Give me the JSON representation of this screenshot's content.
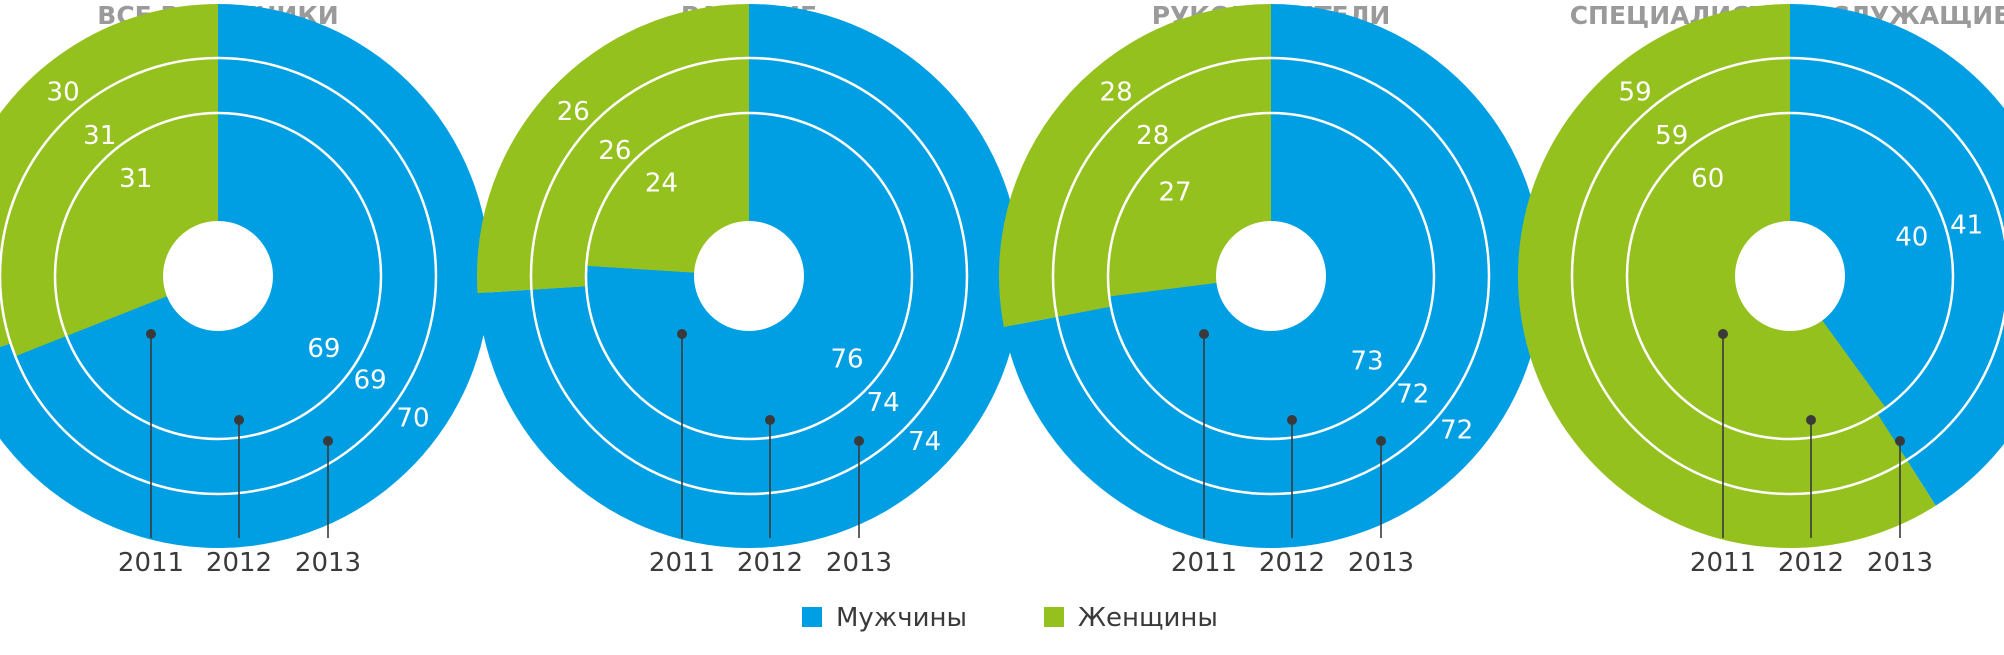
{
  "colors": {
    "men": "#009fe3",
    "women": "#95c11f",
    "ring_line": "#ffffff",
    "leader": "#3a3a3a"
  },
  "legend": [
    {
      "key": "men",
      "label": "Мужчины"
    },
    {
      "key": "women",
      "label": "Женщины"
    }
  ],
  "years": [
    "2011",
    "2012",
    "2013"
  ],
  "chart_data": [
    {
      "type": "pie",
      "title": "ВСЕ РАБОТНИКИ",
      "series": [
        {
          "name": "Мужчины",
          "values": [
            69,
            69,
            70
          ]
        },
        {
          "name": "Женщины",
          "values": [
            31,
            31,
            30
          ]
        }
      ],
      "categories": [
        "2011",
        "2012",
        "2013"
      ]
    },
    {
      "type": "pie",
      "title": "РАБОЧИЕ",
      "series": [
        {
          "name": "Мужчины",
          "values": [
            76,
            74,
            74
          ]
        },
        {
          "name": "Женщины",
          "values": [
            24,
            26,
            26
          ]
        }
      ],
      "categories": [
        "2011",
        "2012",
        "2013"
      ]
    },
    {
      "type": "pie",
      "title": "РУКОВОДИТЕЛИ",
      "series": [
        {
          "name": "Мужчины",
          "values": [
            73,
            72,
            72
          ]
        },
        {
          "name": "Женщины",
          "values": [
            27,
            28,
            28
          ]
        }
      ],
      "categories": [
        "2011",
        "2012",
        "2013"
      ]
    },
    {
      "type": "pie",
      "title": "СПЕЦИАЛИСТЫ И СЛУЖАЩИЕ",
      "series": [
        {
          "name": "Мужчины",
          "values": [
            40,
            41,
            41
          ]
        },
        {
          "name": "Женщины",
          "values": [
            60,
            59,
            59
          ]
        }
      ],
      "categories": [
        "2011",
        "2012",
        "2013"
      ]
    }
  ]
}
